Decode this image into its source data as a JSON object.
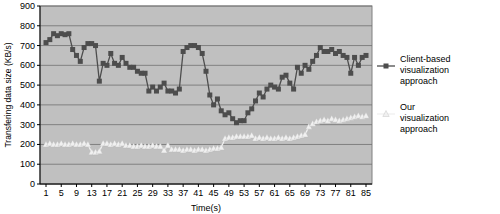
{
  "chart_data": {
    "type": "line",
    "x_label": "Time(s)",
    "y_label": "Transfering data size (KB/s)",
    "x": [
      1,
      2,
      3,
      4,
      5,
      6,
      7,
      8,
      9,
      10,
      11,
      12,
      13,
      14,
      15,
      16,
      17,
      18,
      19,
      20,
      21,
      22,
      23,
      24,
      25,
      26,
      27,
      28,
      29,
      30,
      31,
      32,
      33,
      34,
      35,
      36,
      37,
      38,
      39,
      40,
      41,
      42,
      43,
      44,
      45,
      46,
      47,
      48,
      49,
      50,
      51,
      52,
      53,
      54,
      55,
      56,
      57,
      58,
      59,
      60,
      61,
      62,
      63,
      64,
      65,
      66,
      67,
      68,
      69,
      70,
      71,
      72,
      73,
      74,
      75,
      76,
      77,
      78,
      79,
      80,
      81,
      82,
      83,
      84,
      85
    ],
    "series": [
      {
        "name": "Client-based visualization approach",
        "color": "#4d4d4d",
        "marker": "square",
        "values": [
          715,
          730,
          760,
          750,
          760,
          755,
          760,
          680,
          650,
          620,
          690,
          710,
          710,
          700,
          520,
          610,
          600,
          660,
          610,
          600,
          640,
          610,
          590,
          590,
          570,
          560,
          560,
          470,
          490,
          470,
          490,
          510,
          470,
          470,
          460,
          480,
          670,
          690,
          700,
          700,
          690,
          660,
          570,
          450,
          400,
          430,
          370,
          350,
          360,
          330,
          310,
          320,
          320,
          360,
          380,
          420,
          460,
          440,
          480,
          500,
          490,
          480,
          540,
          550,
          510,
          480,
          590,
          560,
          600,
          580,
          620,
          650,
          690,
          670,
          670,
          680,
          660,
          670,
          650,
          640,
          560,
          640,
          600,
          640,
          650
        ]
      },
      {
        "name": "Our visualization approach",
        "color": "#f0f0f0",
        "marker": "triangle",
        "values": [
          200,
          205,
          200,
          200,
          205,
          200,
          200,
          205,
          200,
          200,
          205,
          200,
          160,
          160,
          165,
          205,
          205,
          200,
          205,
          200,
          205,
          195,
          195,
          190,
          190,
          195,
          190,
          190,
          195,
          190,
          190,
          170,
          195,
          175,
          175,
          175,
          170,
          175,
          175,
          170,
          175,
          175,
          170,
          175,
          180,
          180,
          185,
          230,
          235,
          235,
          240,
          240,
          240,
          240,
          245,
          230,
          235,
          230,
          235,
          230,
          230,
          235,
          230,
          235,
          230,
          235,
          240,
          245,
          250,
          290,
          305,
          315,
          320,
          325,
          320,
          330,
          325,
          320,
          325,
          330,
          335,
          340,
          345,
          340,
          345
        ]
      }
    ],
    "xlim": [
      1,
      85
    ],
    "xticks": [
      1,
      5,
      9,
      13,
      17,
      21,
      25,
      29,
      33,
      37,
      41,
      45,
      49,
      53,
      57,
      61,
      65,
      69,
      73,
      77,
      81,
      85
    ],
    "ylim": [
      0,
      900
    ],
    "yticks": [
      0,
      100,
      200,
      300,
      400,
      500,
      600,
      700,
      800,
      900
    ],
    "grid": true,
    "legend": "right"
  }
}
